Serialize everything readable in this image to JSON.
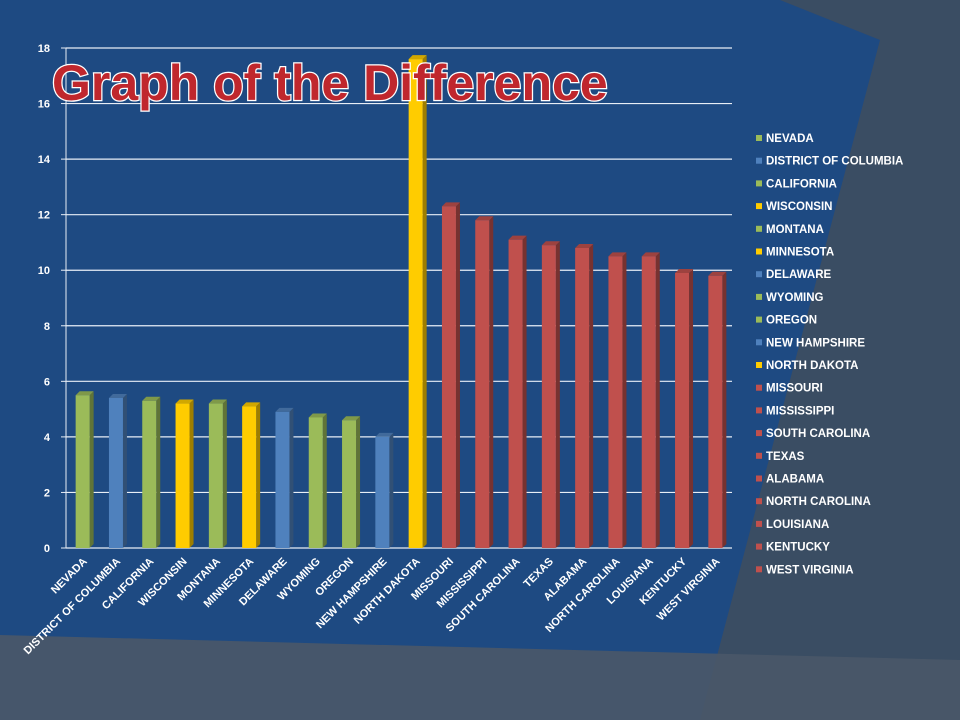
{
  "colors": {
    "background": "#1e4a82",
    "frame": "#4d5a6b",
    "green": "#9bbb59",
    "blue": "#4f81bd",
    "yellow": "#ffcc00",
    "red": "#c0504d",
    "text": "#ffffff",
    "title_fill": "#c0272d"
  },
  "chart_data": {
    "type": "bar",
    "title": "Graph of the Difference",
    "xlabel": "",
    "ylabel": "",
    "ylim": [
      0,
      18
    ],
    "yticks": [
      0,
      2,
      4,
      6,
      8,
      10,
      12,
      14,
      16,
      18
    ],
    "grid": true,
    "legend_position": "right",
    "categories": [
      "NEVADA",
      "DISTRICT OF COLUMBIA",
      "CALIFORNIA",
      "WISCONSIN",
      "MONTANA",
      "MINNESOTA",
      "DELAWARE",
      "WYOMING",
      "OREGON",
      "NEW HAMPSHIRE",
      "NORTH DAKOTA",
      "MISSOURI",
      "MISSISSIPPI",
      "SOUTH CAROLINA",
      "TEXAS",
      "ALABAMA",
      "NORTH CAROLINA",
      "LOUISIANA",
      "KENTUCKY",
      "WEST VIRGINIA"
    ],
    "values": [
      5.5,
      5.4,
      5.3,
      5.2,
      5.2,
      5.1,
      4.9,
      4.7,
      4.6,
      4.0,
      17.6,
      12.3,
      11.8,
      11.1,
      10.9,
      10.8,
      10.5,
      10.5,
      9.9,
      9.8
    ],
    "bar_colors": [
      "green",
      "blue",
      "green",
      "yellow",
      "green",
      "yellow",
      "blue",
      "green",
      "green",
      "blue",
      "yellow",
      "red",
      "red",
      "red",
      "red",
      "red",
      "red",
      "red",
      "red",
      "red"
    ]
  }
}
